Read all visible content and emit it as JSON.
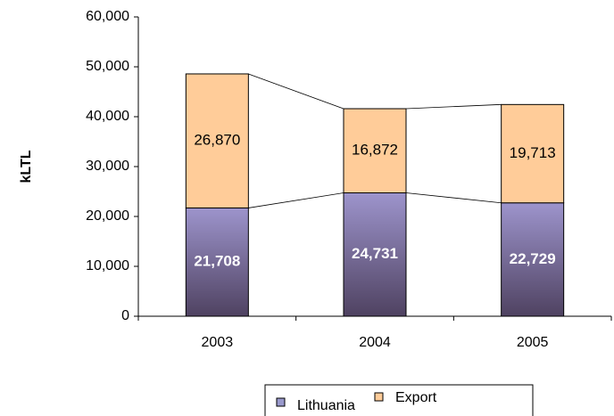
{
  "chart_data": {
    "type": "stacked_bar",
    "y_label": "kLTL",
    "categories": [
      "2003",
      "2004",
      "2005"
    ],
    "series": [
      {
        "name": "Lithuania",
        "color": "#9999cc",
        "values": [
          21708,
          24731,
          22729
        ],
        "value_labels": [
          "21,708",
          "24,731",
          "22,729"
        ]
      },
      {
        "name": "Export",
        "color": "#ffcc99",
        "values": [
          26870,
          16872,
          19713
        ],
        "value_labels": [
          "26,870",
          "16,872",
          "19,713"
        ]
      }
    ],
    "ylim": [
      0,
      60000
    ],
    "yticks": [
      0,
      {
        "value": 10000,
        "label": "10,000"
      },
      {
        "value": 20000,
        "label": "20,000"
      },
      {
        "value": 30000,
        "label": "30,000"
      },
      {
        "value": 40000,
        "label": "40,000"
      },
      {
        "value": 50000,
        "label": "50,000"
      },
      {
        "value": 60000,
        "label": "60,000"
      }
    ],
    "legend": "bottom"
  }
}
